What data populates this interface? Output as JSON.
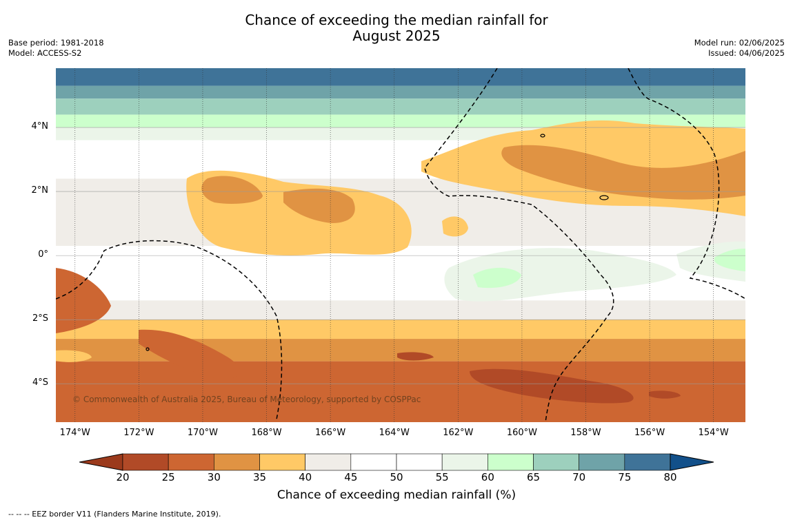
{
  "title_line1": "Chance of exceeding the median rainfall for",
  "title_line2": "August 2025",
  "meta_left": [
    "Base period: 1981-2018",
    "Model: ACCESS-S2"
  ],
  "meta_right": [
    "Model run: 02/06/2025",
    "Issued: 04/06/2025"
  ],
  "copyright": "© Commonwealth of Australia 2025, Bureau of Meteorology, supported by COSPPac",
  "footnote": "--  --  -- EEZ border V11 (Flanders Marine Institute, 2019).",
  "map": {
    "lon_range": [
      -174.6,
      -153.0
    ],
    "lat_range": [
      -5.2,
      5.85
    ],
    "lat_ticks": [
      {
        "v": 4,
        "label": "4°N"
      },
      {
        "v": 2,
        "label": "2°N"
      },
      {
        "v": 0,
        "label": "0°"
      },
      {
        "v": -2,
        "label": "2°S"
      },
      {
        "v": -4,
        "label": "4°S"
      }
    ],
    "lon_ticks": [
      {
        "v": -174,
        "label": "174°W"
      },
      {
        "v": -172,
        "label": "172°W"
      },
      {
        "v": -170,
        "label": "170°W"
      },
      {
        "v": -168,
        "label": "168°W"
      },
      {
        "v": -166,
        "label": "166°W"
      },
      {
        "v": -164,
        "label": "164°W"
      },
      {
        "v": -162,
        "label": "162°W"
      },
      {
        "v": -160,
        "label": "160°W"
      },
      {
        "v": -158,
        "label": "158°W"
      },
      {
        "v": -156,
        "label": "156°W"
      },
      {
        "v": -154,
        "label": "154°W"
      }
    ],
    "bands_lat": [
      {
        "lat_top": 5.85,
        "lat_bot": 5.3,
        "color": "#3f7398"
      },
      {
        "lat_top": 5.3,
        "lat_bot": 4.9,
        "color": "#6fa3a8"
      },
      {
        "lat_top": 4.9,
        "lat_bot": 4.4,
        "color": "#9dd0bd"
      },
      {
        "lat_top": 4.4,
        "lat_bot": 4.0,
        "color": "#ccffcc"
      },
      {
        "lat_top": 4.0,
        "lat_bot": 3.6,
        "color": "#ebf5e9"
      },
      {
        "lat_top": 3.6,
        "lat_bot": 2.4,
        "color": "#ffffff"
      },
      {
        "lat_top": 2.4,
        "lat_bot": 0.3,
        "color": "#f0ede8"
      },
      {
        "lat_top": 0.3,
        "lat_bot": -1.4,
        "color": "#ffffff"
      },
      {
        "lat_top": -1.4,
        "lat_bot": -2.0,
        "color": "#f0ede8"
      },
      {
        "lat_top": -2.0,
        "lat_bot": -2.6,
        "color": "#ffc966"
      },
      {
        "lat_top": -2.6,
        "lat_bot": -3.3,
        "color": "#e09343"
      },
      {
        "lat_top": -3.3,
        "lat_bot": -5.2,
        "color": "#cd6632"
      }
    ]
  },
  "colorbar": {
    "label": "Chance of exceeding median rainfall (%)",
    "ticks": [
      "20",
      "25",
      "30",
      "35",
      "40",
      "45",
      "50",
      "55",
      "60",
      "65",
      "70",
      "75",
      "80"
    ],
    "low_extend_color": "#9b3a1c",
    "high_extend_color": "#12508a",
    "colors": [
      "#b14a27",
      "#cd6632",
      "#e09343",
      "#ffc966",
      "#f0ede8",
      "#ffffff",
      "#ffffff",
      "#ebf5e9",
      "#ccffcc",
      "#9dd0bd",
      "#6fa3a8",
      "#3f7398"
    ]
  }
}
